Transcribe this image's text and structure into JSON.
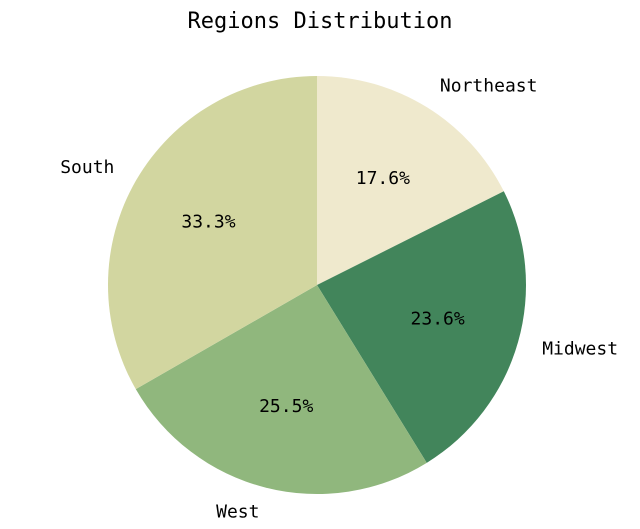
{
  "chart_data": {
    "type": "pie",
    "title": "Regions Distribution",
    "slices": [
      {
        "label": "Northeast",
        "value": 17.6,
        "pct_label": "17.6%",
        "color": "#efe9cd"
      },
      {
        "label": "Midwest",
        "value": 23.6,
        "pct_label": "23.6%",
        "color": "#42855b"
      },
      {
        "label": "West",
        "value": 25.5,
        "pct_label": "25.5%",
        "color": "#90b77d"
      },
      {
        "label": "South",
        "value": 33.3,
        "pct_label": "33.3%",
        "color": "#d2d6a0"
      }
    ],
    "start_angle_deg": 90,
    "direction": "clockwise"
  }
}
